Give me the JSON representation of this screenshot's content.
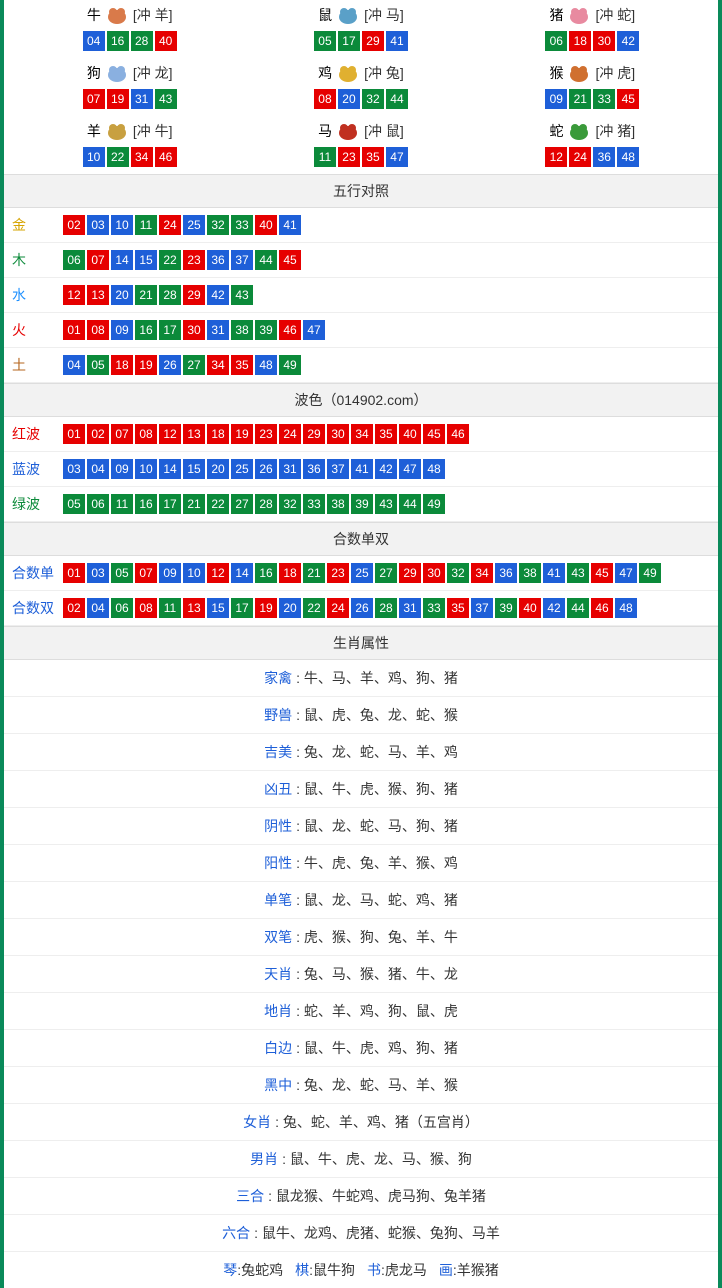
{
  "colors": {
    "red": "#e60000",
    "blue": "#1e5fd8",
    "green": "#0b8a3a",
    "border": "#0a8a5a",
    "header_bg": "#f2f2f2"
  },
  "zodiac_icons_fill": {
    "牛": "#d97a4a",
    "鼠": "#5aa0c8",
    "猪": "#e88aa0",
    "狗": "#8ab0e0",
    "鸡": "#e0b030",
    "猴": "#d07030",
    "羊": "#c8a040",
    "马": "#c03020",
    "蛇": "#3a9a3a"
  },
  "zodiac": [
    {
      "cn": "牛",
      "clash": "[冲 羊]",
      "balls": [
        {
          "n": "04",
          "c": "blue"
        },
        {
          "n": "16",
          "c": "green"
        },
        {
          "n": "28",
          "c": "green"
        },
        {
          "n": "40",
          "c": "red"
        }
      ]
    },
    {
      "cn": "鼠",
      "clash": "[冲 马]",
      "balls": [
        {
          "n": "05",
          "c": "green"
        },
        {
          "n": "17",
          "c": "green"
        },
        {
          "n": "29",
          "c": "red"
        },
        {
          "n": "41",
          "c": "blue"
        }
      ]
    },
    {
      "cn": "猪",
      "clash": "[冲 蛇]",
      "balls": [
        {
          "n": "06",
          "c": "green"
        },
        {
          "n": "18",
          "c": "red"
        },
        {
          "n": "30",
          "c": "red"
        },
        {
          "n": "42",
          "c": "blue"
        }
      ]
    },
    {
      "cn": "狗",
      "clash": "[冲 龙]",
      "balls": [
        {
          "n": "07",
          "c": "red"
        },
        {
          "n": "19",
          "c": "red"
        },
        {
          "n": "31",
          "c": "blue"
        },
        {
          "n": "43",
          "c": "green"
        }
      ]
    },
    {
      "cn": "鸡",
      "clash": "[冲 兔]",
      "balls": [
        {
          "n": "08",
          "c": "red"
        },
        {
          "n": "20",
          "c": "blue"
        },
        {
          "n": "32",
          "c": "green"
        },
        {
          "n": "44",
          "c": "green"
        }
      ]
    },
    {
      "cn": "猴",
      "clash": "[冲 虎]",
      "balls": [
        {
          "n": "09",
          "c": "blue"
        },
        {
          "n": "21",
          "c": "green"
        },
        {
          "n": "33",
          "c": "green"
        },
        {
          "n": "45",
          "c": "red"
        }
      ]
    },
    {
      "cn": "羊",
      "clash": "[冲 牛]",
      "balls": [
        {
          "n": "10",
          "c": "blue"
        },
        {
          "n": "22",
          "c": "green"
        },
        {
          "n": "34",
          "c": "red"
        },
        {
          "n": "46",
          "c": "red"
        }
      ]
    },
    {
      "cn": "马",
      "clash": "[冲 鼠]",
      "balls": [
        {
          "n": "11",
          "c": "green"
        },
        {
          "n": "23",
          "c": "red"
        },
        {
          "n": "35",
          "c": "red"
        },
        {
          "n": "47",
          "c": "blue"
        }
      ]
    },
    {
      "cn": "蛇",
      "clash": "[冲 猪]",
      "balls": [
        {
          "n": "12",
          "c": "red"
        },
        {
          "n": "24",
          "c": "red"
        },
        {
          "n": "36",
          "c": "blue"
        },
        {
          "n": "48",
          "c": "blue"
        }
      ]
    }
  ],
  "wuxing_header": "五行对照",
  "wuxing": [
    {
      "label": "金",
      "cls": "lbl-gold",
      "balls": [
        {
          "n": "02",
          "c": "red"
        },
        {
          "n": "03",
          "c": "blue"
        },
        {
          "n": "10",
          "c": "blue"
        },
        {
          "n": "11",
          "c": "green"
        },
        {
          "n": "24",
          "c": "red"
        },
        {
          "n": "25",
          "c": "blue"
        },
        {
          "n": "32",
          "c": "green"
        },
        {
          "n": "33",
          "c": "green"
        },
        {
          "n": "40",
          "c": "red"
        },
        {
          "n": "41",
          "c": "blue"
        }
      ]
    },
    {
      "label": "木",
      "cls": "lbl-wood",
      "balls": [
        {
          "n": "06",
          "c": "green"
        },
        {
          "n": "07",
          "c": "red"
        },
        {
          "n": "14",
          "c": "blue"
        },
        {
          "n": "15",
          "c": "blue"
        },
        {
          "n": "22",
          "c": "green"
        },
        {
          "n": "23",
          "c": "red"
        },
        {
          "n": "36",
          "c": "blue"
        },
        {
          "n": "37",
          "c": "blue"
        },
        {
          "n": "44",
          "c": "green"
        },
        {
          "n": "45",
          "c": "red"
        }
      ]
    },
    {
      "label": "水",
      "cls": "lbl-water",
      "balls": [
        {
          "n": "12",
          "c": "red"
        },
        {
          "n": "13",
          "c": "red"
        },
        {
          "n": "20",
          "c": "blue"
        },
        {
          "n": "21",
          "c": "green"
        },
        {
          "n": "28",
          "c": "green"
        },
        {
          "n": "29",
          "c": "red"
        },
        {
          "n": "42",
          "c": "blue"
        },
        {
          "n": "43",
          "c": "green"
        }
      ]
    },
    {
      "label": "火",
      "cls": "lbl-fire",
      "balls": [
        {
          "n": "01",
          "c": "red"
        },
        {
          "n": "08",
          "c": "red"
        },
        {
          "n": "09",
          "c": "blue"
        },
        {
          "n": "16",
          "c": "green"
        },
        {
          "n": "17",
          "c": "green"
        },
        {
          "n": "30",
          "c": "red"
        },
        {
          "n": "31",
          "c": "blue"
        },
        {
          "n": "38",
          "c": "green"
        },
        {
          "n": "39",
          "c": "green"
        },
        {
          "n": "46",
          "c": "red"
        },
        {
          "n": "47",
          "c": "blue"
        }
      ]
    },
    {
      "label": "土",
      "cls": "lbl-earth",
      "balls": [
        {
          "n": "04",
          "c": "blue"
        },
        {
          "n": "05",
          "c": "green"
        },
        {
          "n": "18",
          "c": "red"
        },
        {
          "n": "19",
          "c": "red"
        },
        {
          "n": "26",
          "c": "blue"
        },
        {
          "n": "27",
          "c": "green"
        },
        {
          "n": "34",
          "c": "red"
        },
        {
          "n": "35",
          "c": "red"
        },
        {
          "n": "48",
          "c": "blue"
        },
        {
          "n": "49",
          "c": "green"
        }
      ]
    }
  ],
  "bose_header": "波色（014902.com）",
  "bose": [
    {
      "label": "红波",
      "cls": "lbl-red",
      "balls": [
        {
          "n": "01",
          "c": "red"
        },
        {
          "n": "02",
          "c": "red"
        },
        {
          "n": "07",
          "c": "red"
        },
        {
          "n": "08",
          "c": "red"
        },
        {
          "n": "12",
          "c": "red"
        },
        {
          "n": "13",
          "c": "red"
        },
        {
          "n": "18",
          "c": "red"
        },
        {
          "n": "19",
          "c": "red"
        },
        {
          "n": "23",
          "c": "red"
        },
        {
          "n": "24",
          "c": "red"
        },
        {
          "n": "29",
          "c": "red"
        },
        {
          "n": "30",
          "c": "red"
        },
        {
          "n": "34",
          "c": "red"
        },
        {
          "n": "35",
          "c": "red"
        },
        {
          "n": "40",
          "c": "red"
        },
        {
          "n": "45",
          "c": "red"
        },
        {
          "n": "46",
          "c": "red"
        }
      ]
    },
    {
      "label": "蓝波",
      "cls": "lbl-blue",
      "balls": [
        {
          "n": "03",
          "c": "blue"
        },
        {
          "n": "04",
          "c": "blue"
        },
        {
          "n": "09",
          "c": "blue"
        },
        {
          "n": "10",
          "c": "blue"
        },
        {
          "n": "14",
          "c": "blue"
        },
        {
          "n": "15",
          "c": "blue"
        },
        {
          "n": "20",
          "c": "blue"
        },
        {
          "n": "25",
          "c": "blue"
        },
        {
          "n": "26",
          "c": "blue"
        },
        {
          "n": "31",
          "c": "blue"
        },
        {
          "n": "36",
          "c": "blue"
        },
        {
          "n": "37",
          "c": "blue"
        },
        {
          "n": "41",
          "c": "blue"
        },
        {
          "n": "42",
          "c": "blue"
        },
        {
          "n": "47",
          "c": "blue"
        },
        {
          "n": "48",
          "c": "blue"
        }
      ]
    },
    {
      "label": "绿波",
      "cls": "lbl-green",
      "balls": [
        {
          "n": "05",
          "c": "green"
        },
        {
          "n": "06",
          "c": "green"
        },
        {
          "n": "11",
          "c": "green"
        },
        {
          "n": "16",
          "c": "green"
        },
        {
          "n": "17",
          "c": "green"
        },
        {
          "n": "21",
          "c": "green"
        },
        {
          "n": "22",
          "c": "green"
        },
        {
          "n": "27",
          "c": "green"
        },
        {
          "n": "28",
          "c": "green"
        },
        {
          "n": "32",
          "c": "green"
        },
        {
          "n": "33",
          "c": "green"
        },
        {
          "n": "38",
          "c": "green"
        },
        {
          "n": "39",
          "c": "green"
        },
        {
          "n": "43",
          "c": "green"
        },
        {
          "n": "44",
          "c": "green"
        },
        {
          "n": "49",
          "c": "green"
        }
      ]
    }
  ],
  "heshu_header": "合数单双",
  "heshu": [
    {
      "label": "合数单",
      "cls": "lbl-blue",
      "balls": [
        {
          "n": "01",
          "c": "red"
        },
        {
          "n": "03",
          "c": "blue"
        },
        {
          "n": "05",
          "c": "green"
        },
        {
          "n": "07",
          "c": "red"
        },
        {
          "n": "09",
          "c": "blue"
        },
        {
          "n": "10",
          "c": "blue"
        },
        {
          "n": "12",
          "c": "red"
        },
        {
          "n": "14",
          "c": "blue"
        },
        {
          "n": "16",
          "c": "green"
        },
        {
          "n": "18",
          "c": "red"
        },
        {
          "n": "21",
          "c": "green"
        },
        {
          "n": "23",
          "c": "red"
        },
        {
          "n": "25",
          "c": "blue"
        },
        {
          "n": "27",
          "c": "green"
        },
        {
          "n": "29",
          "c": "red"
        },
        {
          "n": "30",
          "c": "red"
        },
        {
          "n": "32",
          "c": "green"
        },
        {
          "n": "34",
          "c": "red"
        },
        {
          "n": "36",
          "c": "blue"
        },
        {
          "n": "38",
          "c": "green"
        },
        {
          "n": "41",
          "c": "blue"
        },
        {
          "n": "43",
          "c": "green"
        },
        {
          "n": "45",
          "c": "red"
        },
        {
          "n": "47",
          "c": "blue"
        },
        {
          "n": "49",
          "c": "green"
        }
      ]
    },
    {
      "label": "合数双",
      "cls": "lbl-blue",
      "balls": [
        {
          "n": "02",
          "c": "red"
        },
        {
          "n": "04",
          "c": "blue"
        },
        {
          "n": "06",
          "c": "green"
        },
        {
          "n": "08",
          "c": "red"
        },
        {
          "n": "11",
          "c": "green"
        },
        {
          "n": "13",
          "c": "red"
        },
        {
          "n": "15",
          "c": "blue"
        },
        {
          "n": "17",
          "c": "green"
        },
        {
          "n": "19",
          "c": "red"
        },
        {
          "n": "20",
          "c": "blue"
        },
        {
          "n": "22",
          "c": "green"
        },
        {
          "n": "24",
          "c": "red"
        },
        {
          "n": "26",
          "c": "blue"
        },
        {
          "n": "28",
          "c": "green"
        },
        {
          "n": "31",
          "c": "blue"
        },
        {
          "n": "33",
          "c": "green"
        },
        {
          "n": "35",
          "c": "red"
        },
        {
          "n": "37",
          "c": "blue"
        },
        {
          "n": "39",
          "c": "green"
        },
        {
          "n": "40",
          "c": "red"
        },
        {
          "n": "42",
          "c": "blue"
        },
        {
          "n": "44",
          "c": "green"
        },
        {
          "n": "46",
          "c": "red"
        },
        {
          "n": "48",
          "c": "blue"
        }
      ]
    }
  ],
  "attr_header": "生肖属性",
  "attrs": [
    {
      "key": "家禽",
      "val": "牛、马、羊、鸡、狗、猪"
    },
    {
      "key": "野兽",
      "val": "鼠、虎、兔、龙、蛇、猴"
    },
    {
      "key": "吉美",
      "val": "兔、龙、蛇、马、羊、鸡"
    },
    {
      "key": "凶丑",
      "val": "鼠、牛、虎、猴、狗、猪"
    },
    {
      "key": "阴性",
      "val": "鼠、龙、蛇、马、狗、猪"
    },
    {
      "key": "阳性",
      "val": "牛、虎、兔、羊、猴、鸡"
    },
    {
      "key": "单笔",
      "val": "鼠、龙、马、蛇、鸡、猪"
    },
    {
      "key": "双笔",
      "val": "虎、猴、狗、兔、羊、牛"
    },
    {
      "key": "天肖",
      "val": "兔、马、猴、猪、牛、龙"
    },
    {
      "key": "地肖",
      "val": "蛇、羊、鸡、狗、鼠、虎"
    },
    {
      "key": "白边",
      "val": "鼠、牛、虎、鸡、狗、猪"
    },
    {
      "key": "黑中",
      "val": "兔、龙、蛇、马、羊、猴"
    },
    {
      "key": "女肖",
      "val": "兔、蛇、羊、鸡、猪（五宫肖）"
    },
    {
      "key": "男肖",
      "val": "鼠、牛、虎、龙、马、猴、狗"
    },
    {
      "key": "三合",
      "val": "鼠龙猴、牛蛇鸡、虎马狗、兔羊猪"
    },
    {
      "key": "六合",
      "val": "鼠牛、龙鸡、虎猪、蛇猴、兔狗、马羊"
    }
  ],
  "four": [
    {
      "k": "琴",
      "v": "兔蛇鸡"
    },
    {
      "k": "棋",
      "v": "鼠牛狗"
    },
    {
      "k": "书",
      "v": "虎龙马"
    },
    {
      "k": "画",
      "v": "羊猴猪"
    }
  ]
}
